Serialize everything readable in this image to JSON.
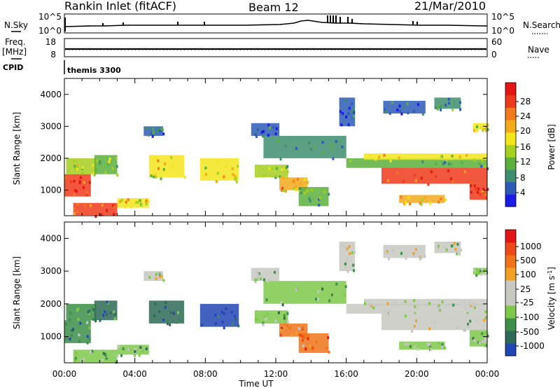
{
  "header": {
    "station": "Rankin Inlet (fitACF)",
    "beam": "Beam 12",
    "date": "21/Mar/2010"
  },
  "strip_panels": {
    "nsky_label": "N.Sky",
    "nsky_ticks": [
      "10^5",
      "10^0"
    ],
    "nsearch_label": "N.Search",
    "nsearch_ticks": [
      "10^5",
      "10^0"
    ],
    "freq_label_1": "Freq.",
    "freq_label_2": "[MHz]",
    "freq_ticks": [
      "18",
      "8"
    ],
    "nave_label": "Nave",
    "nave_ticks": [
      "60",
      "0"
    ],
    "cpid_label": "CPID",
    "cpid_value": "themis 3300"
  },
  "chart_data": [
    {
      "type": "heatmap",
      "name": "power",
      "ylabel": "Slant Range [km]",
      "ylim": [
        200,
        4500
      ],
      "yticks": [
        1000,
        2000,
        3000,
        4000
      ],
      "xlim": [
        0,
        24
      ],
      "xticks": [
        "00:00",
        "04:00",
        "08:00",
        "12:00",
        "16:00",
        "20:00",
        "00:00"
      ],
      "colorbar_label": "Power [dB]",
      "colorbar_ticks": [
        "28",
        "24",
        "20",
        "16",
        "12",
        "8",
        "4"
      ],
      "colorbar_colors": [
        "#1b1be8",
        "#2d5cb8",
        "#3d8e6e",
        "#5bb03c",
        "#a6cf1f",
        "#f2e51a",
        "#f2a91a",
        "#f27a1a",
        "#ee3a1a",
        "#e61515"
      ],
      "regions": [
        {
          "t0": 0.0,
          "t1": 1.5,
          "r0": 800,
          "r1": 1500,
          "level": 8
        },
        {
          "t0": 0.1,
          "t1": 1.8,
          "r0": 1500,
          "r1": 2000,
          "level": 4
        },
        {
          "t0": 0.5,
          "t1": 3.0,
          "r0": 220,
          "r1": 600,
          "level": 8
        },
        {
          "t0": 3.0,
          "t1": 4.8,
          "r0": 450,
          "r1": 750,
          "level": 5
        },
        {
          "t0": 1.7,
          "t1": 3.0,
          "r0": 1500,
          "r1": 2100,
          "level": 3
        },
        {
          "t0": 4.8,
          "t1": 6.8,
          "r0": 1400,
          "r1": 2100,
          "level": 5
        },
        {
          "t0": 4.5,
          "t1": 5.6,
          "r0": 2700,
          "r1": 3000,
          "level": 1
        },
        {
          "t0": 7.7,
          "t1": 9.9,
          "r0": 1300,
          "r1": 2000,
          "level": 5
        },
        {
          "t0": 10.8,
          "t1": 12.7,
          "r0": 1400,
          "r1": 1800,
          "level": 4
        },
        {
          "t0": 12.2,
          "t1": 13.8,
          "r0": 1000,
          "r1": 1400,
          "level": 6
        },
        {
          "t0": 13.3,
          "t1": 15.0,
          "r0": 500,
          "r1": 1100,
          "level": 3
        },
        {
          "t0": 11.3,
          "t1": 16.0,
          "r0": 2000,
          "r1": 2700,
          "level": 2
        },
        {
          "t0": 10.6,
          "t1": 12.2,
          "r0": 2700,
          "r1": 3100,
          "level": 1
        },
        {
          "t0": 16.0,
          "t1": 24.0,
          "r0": 1700,
          "r1": 2000,
          "level": 3
        },
        {
          "t0": 18.0,
          "t1": 24.0,
          "r0": 1200,
          "r1": 1700,
          "level": 8
        },
        {
          "t0": 17.0,
          "t1": 24.0,
          "r0": 1950,
          "r1": 2150,
          "level": 5
        },
        {
          "t0": 19.0,
          "t1": 21.6,
          "r0": 600,
          "r1": 850,
          "level": 6
        },
        {
          "t0": 23.0,
          "t1": 24.0,
          "r0": 700,
          "r1": 1200,
          "level": 8
        },
        {
          "t0": 18.1,
          "t1": 20.5,
          "r0": 3400,
          "r1": 3800,
          "level": 1
        },
        {
          "t0": 21.0,
          "t1": 22.5,
          "r0": 3550,
          "r1": 3900,
          "level": 2
        },
        {
          "t0": 15.6,
          "t1": 16.5,
          "r0": 3000,
          "r1": 3900,
          "level": 1
        },
        {
          "t0": 23.2,
          "t1": 24.0,
          "r0": 2900,
          "r1": 3100,
          "level": 5
        }
      ]
    },
    {
      "type": "heatmap",
      "name": "velocity",
      "ylabel": "Slant Range [km]",
      "ylim": [
        200,
        4500
      ],
      "yticks": [
        1000,
        2000,
        3000,
        4000
      ],
      "xlim": [
        0,
        24
      ],
      "xlabel": "Time UT",
      "xticks": [
        "00:00",
        "04:00",
        "08:00",
        "12:00",
        "16:00",
        "20:00",
        "00:00"
      ],
      "colorbar_label_1": "Velocity  [m s",
      "colorbar_label_sup": "-1",
      "colorbar_label_2": "]",
      "colorbar_ticks": [
        "1000",
        "500",
        "100",
        "25",
        "-25",
        "-100",
        "-500",
        "-1000"
      ],
      "colorbar_colors": [
        "#2246b5",
        "#2e6a58",
        "#3c8e48",
        "#7ec84a",
        "#c8c8c2",
        "#c8c8c2",
        "#f2a023",
        "#f07319",
        "#ec4a19",
        "#e61515"
      ],
      "regions": [
        {
          "t0": 0.0,
          "t1": 1.5,
          "r0": 800,
          "r1": 1500,
          "level": 2
        },
        {
          "t0": 0.1,
          "t1": 1.8,
          "r0": 1500,
          "r1": 2000,
          "level": 2
        },
        {
          "t0": 0.5,
          "t1": 3.0,
          "r0": 220,
          "r1": 600,
          "level": 3
        },
        {
          "t0": 3.0,
          "t1": 4.8,
          "r0": 450,
          "r1": 750,
          "level": 3
        },
        {
          "t0": 1.7,
          "t1": 3.0,
          "r0": 1500,
          "r1": 2100,
          "level": 1
        },
        {
          "t0": 4.8,
          "t1": 6.8,
          "r0": 1400,
          "r1": 2100,
          "level": 1
        },
        {
          "t0": 4.5,
          "t1": 5.6,
          "r0": 2700,
          "r1": 3000,
          "level": 4
        },
        {
          "t0": 7.7,
          "t1": 9.9,
          "r0": 1300,
          "r1": 2000,
          "level": 0
        },
        {
          "t0": 10.8,
          "t1": 12.7,
          "r0": 1400,
          "r1": 1800,
          "level": 3
        },
        {
          "t0": 12.2,
          "t1": 13.8,
          "r0": 1000,
          "r1": 1400,
          "level": 7
        },
        {
          "t0": 13.3,
          "t1": 15.0,
          "r0": 500,
          "r1": 1100,
          "level": 7
        },
        {
          "t0": 11.3,
          "t1": 16.0,
          "r0": 2000,
          "r1": 2700,
          "level": 3
        },
        {
          "t0": 10.6,
          "t1": 12.2,
          "r0": 2700,
          "r1": 3100,
          "level": 4
        },
        {
          "t0": 16.0,
          "t1": 24.0,
          "r0": 1700,
          "r1": 2000,
          "level": 4
        },
        {
          "t0": 18.0,
          "t1": 24.0,
          "r0": 1200,
          "r1": 1700,
          "level": 4
        },
        {
          "t0": 17.0,
          "t1": 24.0,
          "r0": 1950,
          "r1": 2150,
          "level": 4
        },
        {
          "t0": 19.0,
          "t1": 21.6,
          "r0": 600,
          "r1": 850,
          "level": 3
        },
        {
          "t0": 23.0,
          "t1": 24.0,
          "r0": 700,
          "r1": 1200,
          "level": 3
        },
        {
          "t0": 18.1,
          "t1": 20.5,
          "r0": 3400,
          "r1": 3800,
          "level": 4
        },
        {
          "t0": 21.0,
          "t1": 22.5,
          "r0": 3550,
          "r1": 3900,
          "level": 4
        },
        {
          "t0": 15.6,
          "t1": 16.5,
          "r0": 3000,
          "r1": 3900,
          "level": 4
        },
        {
          "t0": 23.2,
          "t1": 24.0,
          "r0": 2900,
          "r1": 3100,
          "level": 3
        }
      ]
    }
  ]
}
